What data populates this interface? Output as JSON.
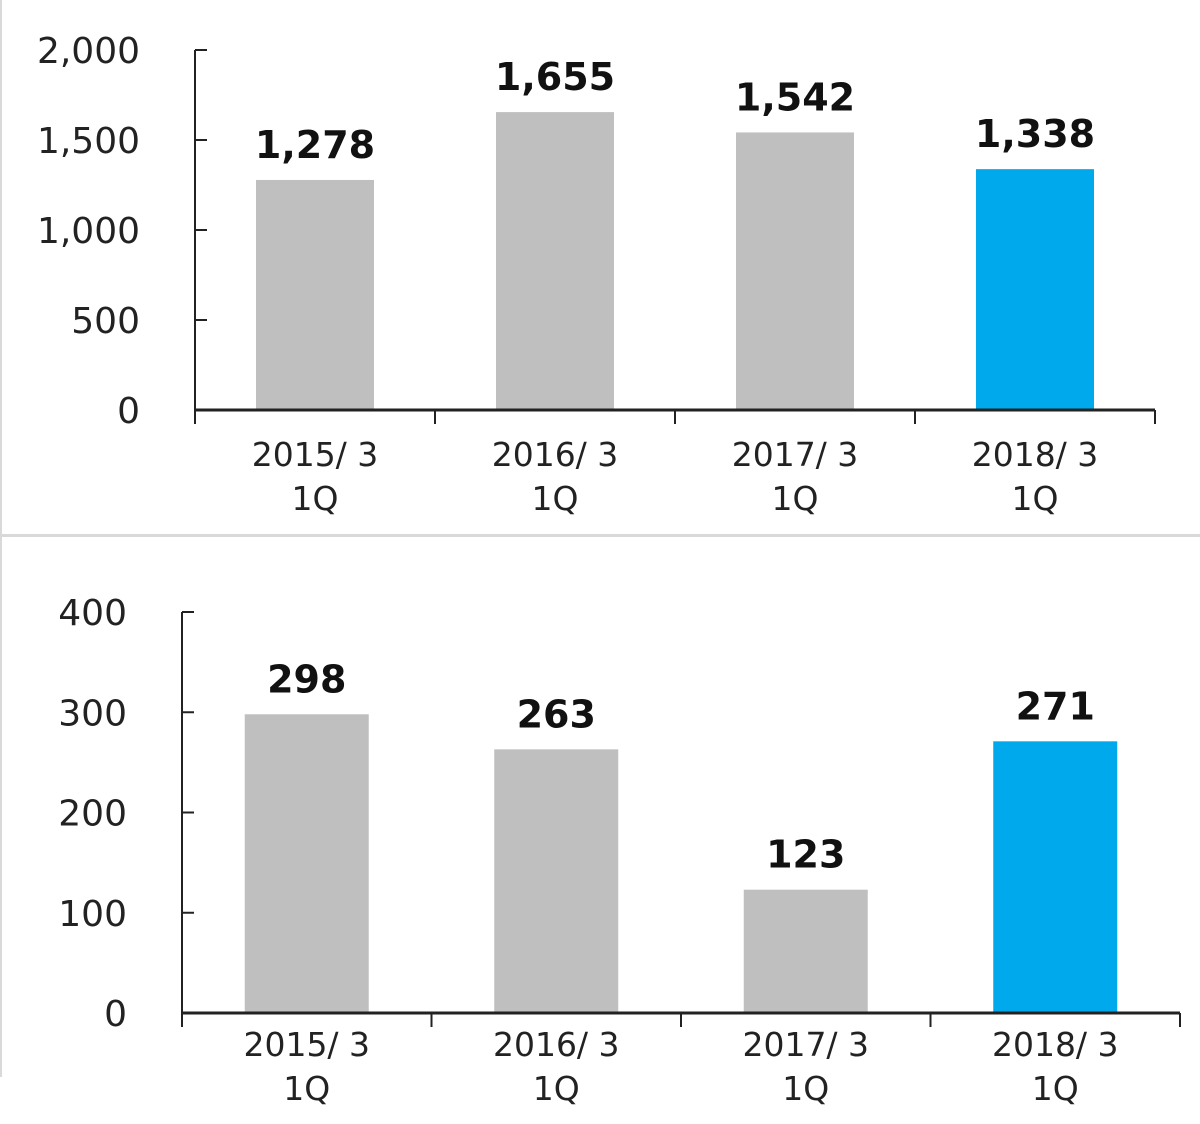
{
  "colors": {
    "default_bar": "#bfbfbf",
    "highlight_bar": "#00a9eb",
    "axis": "#222222"
  },
  "chart_data": [
    {
      "type": "bar",
      "categories": [
        [
          "2015/ 3",
          "1Q"
        ],
        [
          "2016/ 3",
          "1Q"
        ],
        [
          "2017/ 3",
          "1Q"
        ],
        [
          "2018/ 3",
          "1Q"
        ]
      ],
      "values": [
        1278,
        1655,
        1542,
        1338
      ],
      "value_labels": [
        "1,278",
        "1,655",
        "1,542",
        "1,338"
      ],
      "highlight_index": 3,
      "ylim": [
        0,
        2000
      ],
      "yticks": [
        0,
        500,
        1000,
        1500,
        2000
      ],
      "ytick_labels": [
        "0",
        "500",
        "1,000",
        "1,500",
        "2,000"
      ],
      "grid": false
    },
    {
      "type": "bar",
      "categories": [
        [
          "2015/ 3",
          "1Q"
        ],
        [
          "2016/ 3",
          "1Q"
        ],
        [
          "2017/ 3",
          "1Q"
        ],
        [
          "2018/ 3",
          "1Q"
        ]
      ],
      "values": [
        298,
        263,
        123,
        271
      ],
      "value_labels": [
        "298",
        "263",
        "123",
        "271"
      ],
      "highlight_index": 3,
      "ylim": [
        0,
        400
      ],
      "yticks": [
        0,
        100,
        200,
        300,
        400
      ],
      "ytick_labels": [
        "0",
        "100",
        "200",
        "300",
        "400"
      ],
      "grid": false
    }
  ]
}
